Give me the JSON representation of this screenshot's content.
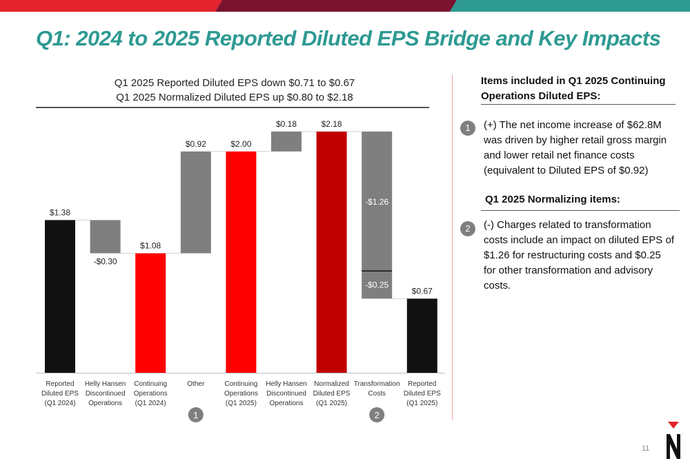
{
  "title": "Q1: 2024 to 2025 Reported Diluted EPS Bridge and Key Impacts",
  "subtitle_lines": [
    "Q1 2025 Reported Diluted EPS down $0.71 to $0.67",
    "Q1 2025 Normalized Diluted EPS up $0.80 to $2.18"
  ],
  "side": {
    "heading1": "Items included in Q1 2025 Continuing Operations Diluted EPS:",
    "item1_number": "1",
    "item1_text": "(+) The net income increase of $62.8M was driven by higher retail gross margin and lower retail net finance costs (equivalent to Diluted EPS of $0.92)",
    "heading2": "Q1 2025 Normalizing items:",
    "item2_number": "2",
    "item2_text": "(-) Charges related to transformation costs include an impact on diluted EPS of $1.26 for restructuring costs and $0.25 for other transformation and advisory costs."
  },
  "page_number": "11",
  "colors": {
    "teal": "#2e9a92",
    "red": "#ff0000",
    "dark_red": "#c00000",
    "gray": "#7f7f7f",
    "black": "#111111",
    "topbar_red": "#e3232d",
    "topbar_maroon": "#7a1230",
    "topbar_teal": "#2e9a92"
  },
  "chart_data": {
    "type": "bar",
    "subtype": "waterfall",
    "ylim": [
      0,
      2.4
    ],
    "categories": [
      [
        "Reported",
        "Diluted EPS",
        "(Q1 2024)"
      ],
      [
        "Helly Hansen",
        "Discontinued",
        "Operations"
      ],
      [
        "Continuing",
        "Operations",
        "(Q1 2024)"
      ],
      [
        "Other"
      ],
      [
        "Continuing",
        "Operations",
        "(Q1 2025)"
      ],
      [
        "Helly Hansen",
        "Discontinued",
        "Operations"
      ],
      [
        "Normalized",
        "Diluted EPS",
        "(Q1 2025)"
      ],
      [
        "Transformation",
        "Costs"
      ],
      [
        "Reported",
        "Diluted EPS",
        "(Q1 2025)"
      ]
    ],
    "bars": [
      {
        "start": 0,
        "end": 1.38,
        "label": "$1.38",
        "color": "#111111",
        "label_pos": "top"
      },
      {
        "start": 1.38,
        "end": 1.08,
        "label": "-$0.30",
        "color": "#7f7f7f",
        "label_pos": "bottom"
      },
      {
        "start": 0,
        "end": 1.08,
        "label": "$1.08",
        "color": "#ff0000",
        "label_pos": "top"
      },
      {
        "start": 1.08,
        "end": 2.0,
        "label": "$0.92",
        "color": "#7f7f7f",
        "label_pos": "top"
      },
      {
        "start": 0,
        "end": 2.0,
        "label": "$2.00",
        "color": "#ff0000",
        "label_pos": "top"
      },
      {
        "start": 2.0,
        "end": 2.18,
        "label": "$0.18",
        "color": "#7f7f7f",
        "label_pos": "top"
      },
      {
        "start": 0,
        "end": 2.18,
        "label": "$2.18",
        "color": "#c00000",
        "label_pos": "top"
      },
      {
        "start": 2.18,
        "end": 0.67,
        "label": "",
        "color": "#7f7f7f",
        "label_pos": "none",
        "segments": [
          {
            "value": -1.26,
            "label": "-$1.26"
          },
          {
            "value": -0.25,
            "label": "-$0.25"
          }
        ]
      },
      {
        "start": 0,
        "end": 0.67,
        "label": "$0.67",
        "color": "#111111",
        "label_pos": "top"
      }
    ],
    "markers": [
      {
        "category_index": 3,
        "label": "1"
      },
      {
        "category_index": 7,
        "label": "2"
      }
    ]
  }
}
